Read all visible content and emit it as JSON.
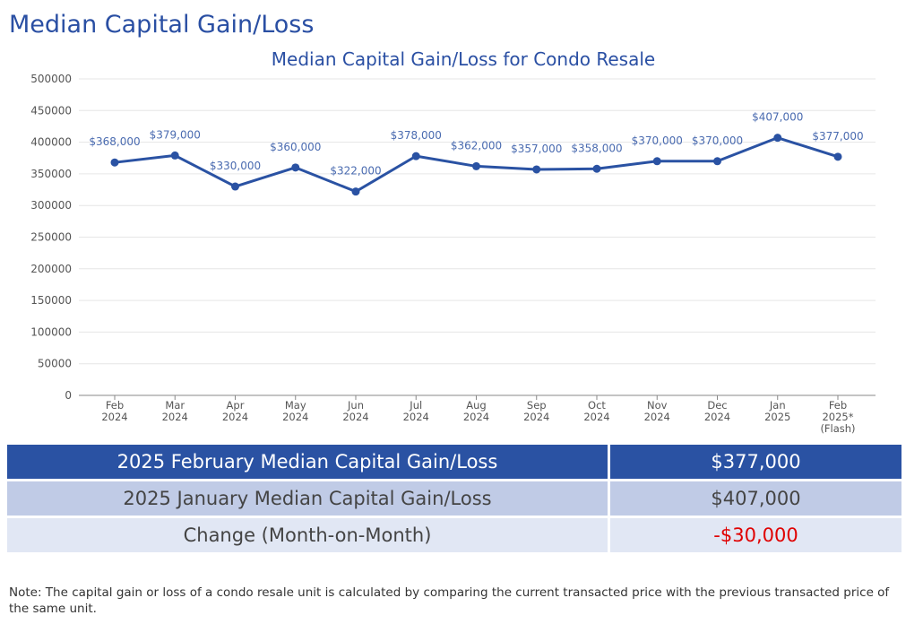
{
  "page": {
    "title": "Median Capital Gain/Loss",
    "note": "Note: The capital gain or loss of a condo resale unit is calculated by comparing the current transacted price with the previous transacted price of the same unit."
  },
  "colors": {
    "line": "#2a52a3",
    "label": "#4a6bb0",
    "header_row": "#2a52a3",
    "second_row": "#c0cbe6",
    "third_row": "#e1e7f4",
    "negative": "#e00000"
  },
  "chart_data": {
    "type": "line",
    "title": "Median Capital Gain/Loss for Condo Resale",
    "xlabel": "",
    "ylabel": "",
    "ylim": [
      0,
      500000
    ],
    "yticks": [
      "0",
      "50000",
      "100000",
      "150000",
      "200000",
      "250000",
      "300000",
      "350000",
      "400000",
      "450000",
      "500000"
    ],
    "grid": true,
    "categories": [
      [
        "Feb",
        "2024"
      ],
      [
        "Mar",
        "2024"
      ],
      [
        "Apr",
        "2024"
      ],
      [
        "May",
        "2024"
      ],
      [
        "Jun",
        "2024"
      ],
      [
        "Jul",
        "2024"
      ],
      [
        "Aug",
        "2024"
      ],
      [
        "Sep",
        "2024"
      ],
      [
        "Oct",
        "2024"
      ],
      [
        "Nov",
        "2024"
      ],
      [
        "Dec",
        "2024"
      ],
      [
        "Jan",
        "2025"
      ],
      [
        "Feb",
        "2025*",
        "(Flash)"
      ]
    ],
    "series": [
      {
        "values": [
          368000,
          379000,
          330000,
          360000,
          322000,
          378000,
          362000,
          357000,
          358000,
          370000,
          370000,
          407000,
          377000
        ],
        "labels": [
          "$368,000",
          "$379,000",
          "$330,000",
          "$360,000",
          "$322,000",
          "$378,000",
          "$362,000",
          "$357,000",
          "$358,000",
          "$370,000",
          "$370,000",
          "$407,000",
          "$377,000"
        ]
      }
    ]
  },
  "summary": [
    {
      "label": "2025 February Median Capital Gain/Loss",
      "value": "$377,000"
    },
    {
      "label": "2025 January Median Capital Gain/Loss",
      "value": "$407,000"
    },
    {
      "label": "Change (Month-on-Month)",
      "value": "-$30,000"
    }
  ]
}
